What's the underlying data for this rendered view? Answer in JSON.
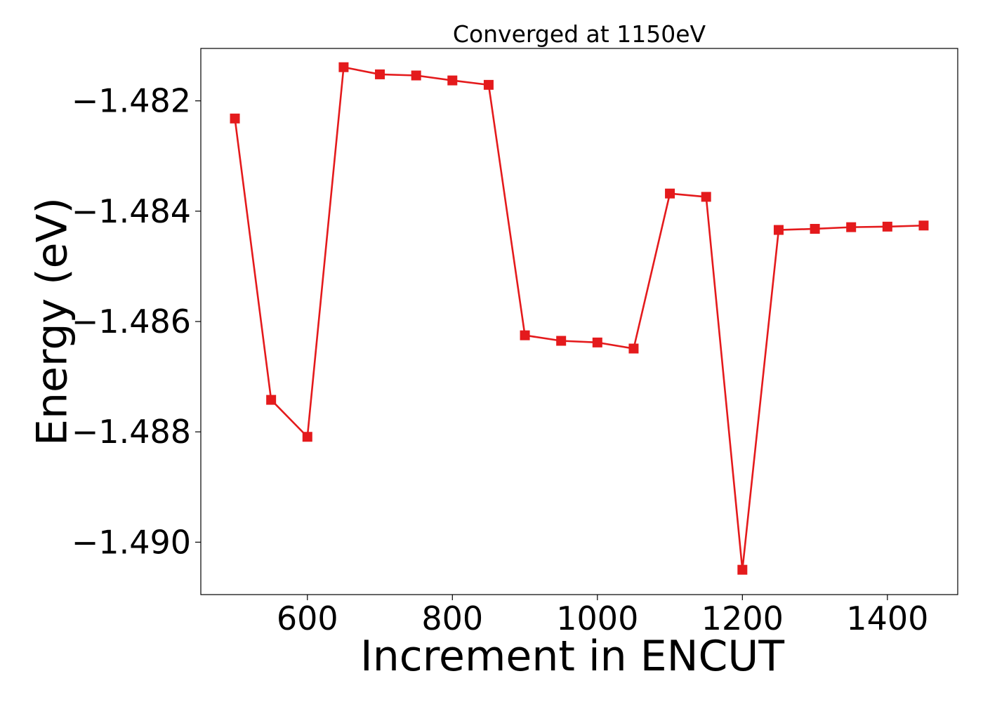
{
  "chart_data": {
    "type": "line",
    "title": "Converged at 1150eV",
    "xlabel": "Increment in ENCUT",
    "ylabel": "Energy (eV)",
    "xlim": [
      453,
      1497
    ],
    "ylim": [
      -1.49095,
      -1.48105
    ],
    "x_ticks": [
      600,
      800,
      1000,
      1200,
      1400
    ],
    "x_tick_labels": [
      "600",
      "800",
      "1000",
      "1200",
      "1400"
    ],
    "y_ticks": [
      -1.482,
      -1.484,
      -1.486,
      -1.488,
      -1.49
    ],
    "y_tick_labels": [
      "−1.482",
      "−1.484",
      "−1.486",
      "−1.488",
      "−1.490"
    ],
    "grid": false,
    "series": [
      {
        "color": "#e41a1c",
        "marker": "square",
        "x": [
          500,
          550,
          600,
          650,
          700,
          750,
          800,
          850,
          900,
          950,
          1000,
          1050,
          1100,
          1150,
          1200,
          1250,
          1300,
          1350,
          1400,
          1450
        ],
        "y": [
          -1.48232,
          -1.48742,
          -1.48809,
          -1.48139,
          -1.48152,
          -1.48154,
          -1.48163,
          -1.48171,
          -1.48625,
          -1.48635,
          -1.48638,
          -1.48649,
          -1.48368,
          -1.48374,
          -1.4905,
          -1.48434,
          -1.48432,
          -1.48429,
          -1.48428,
          -1.48426
        ]
      }
    ]
  }
}
